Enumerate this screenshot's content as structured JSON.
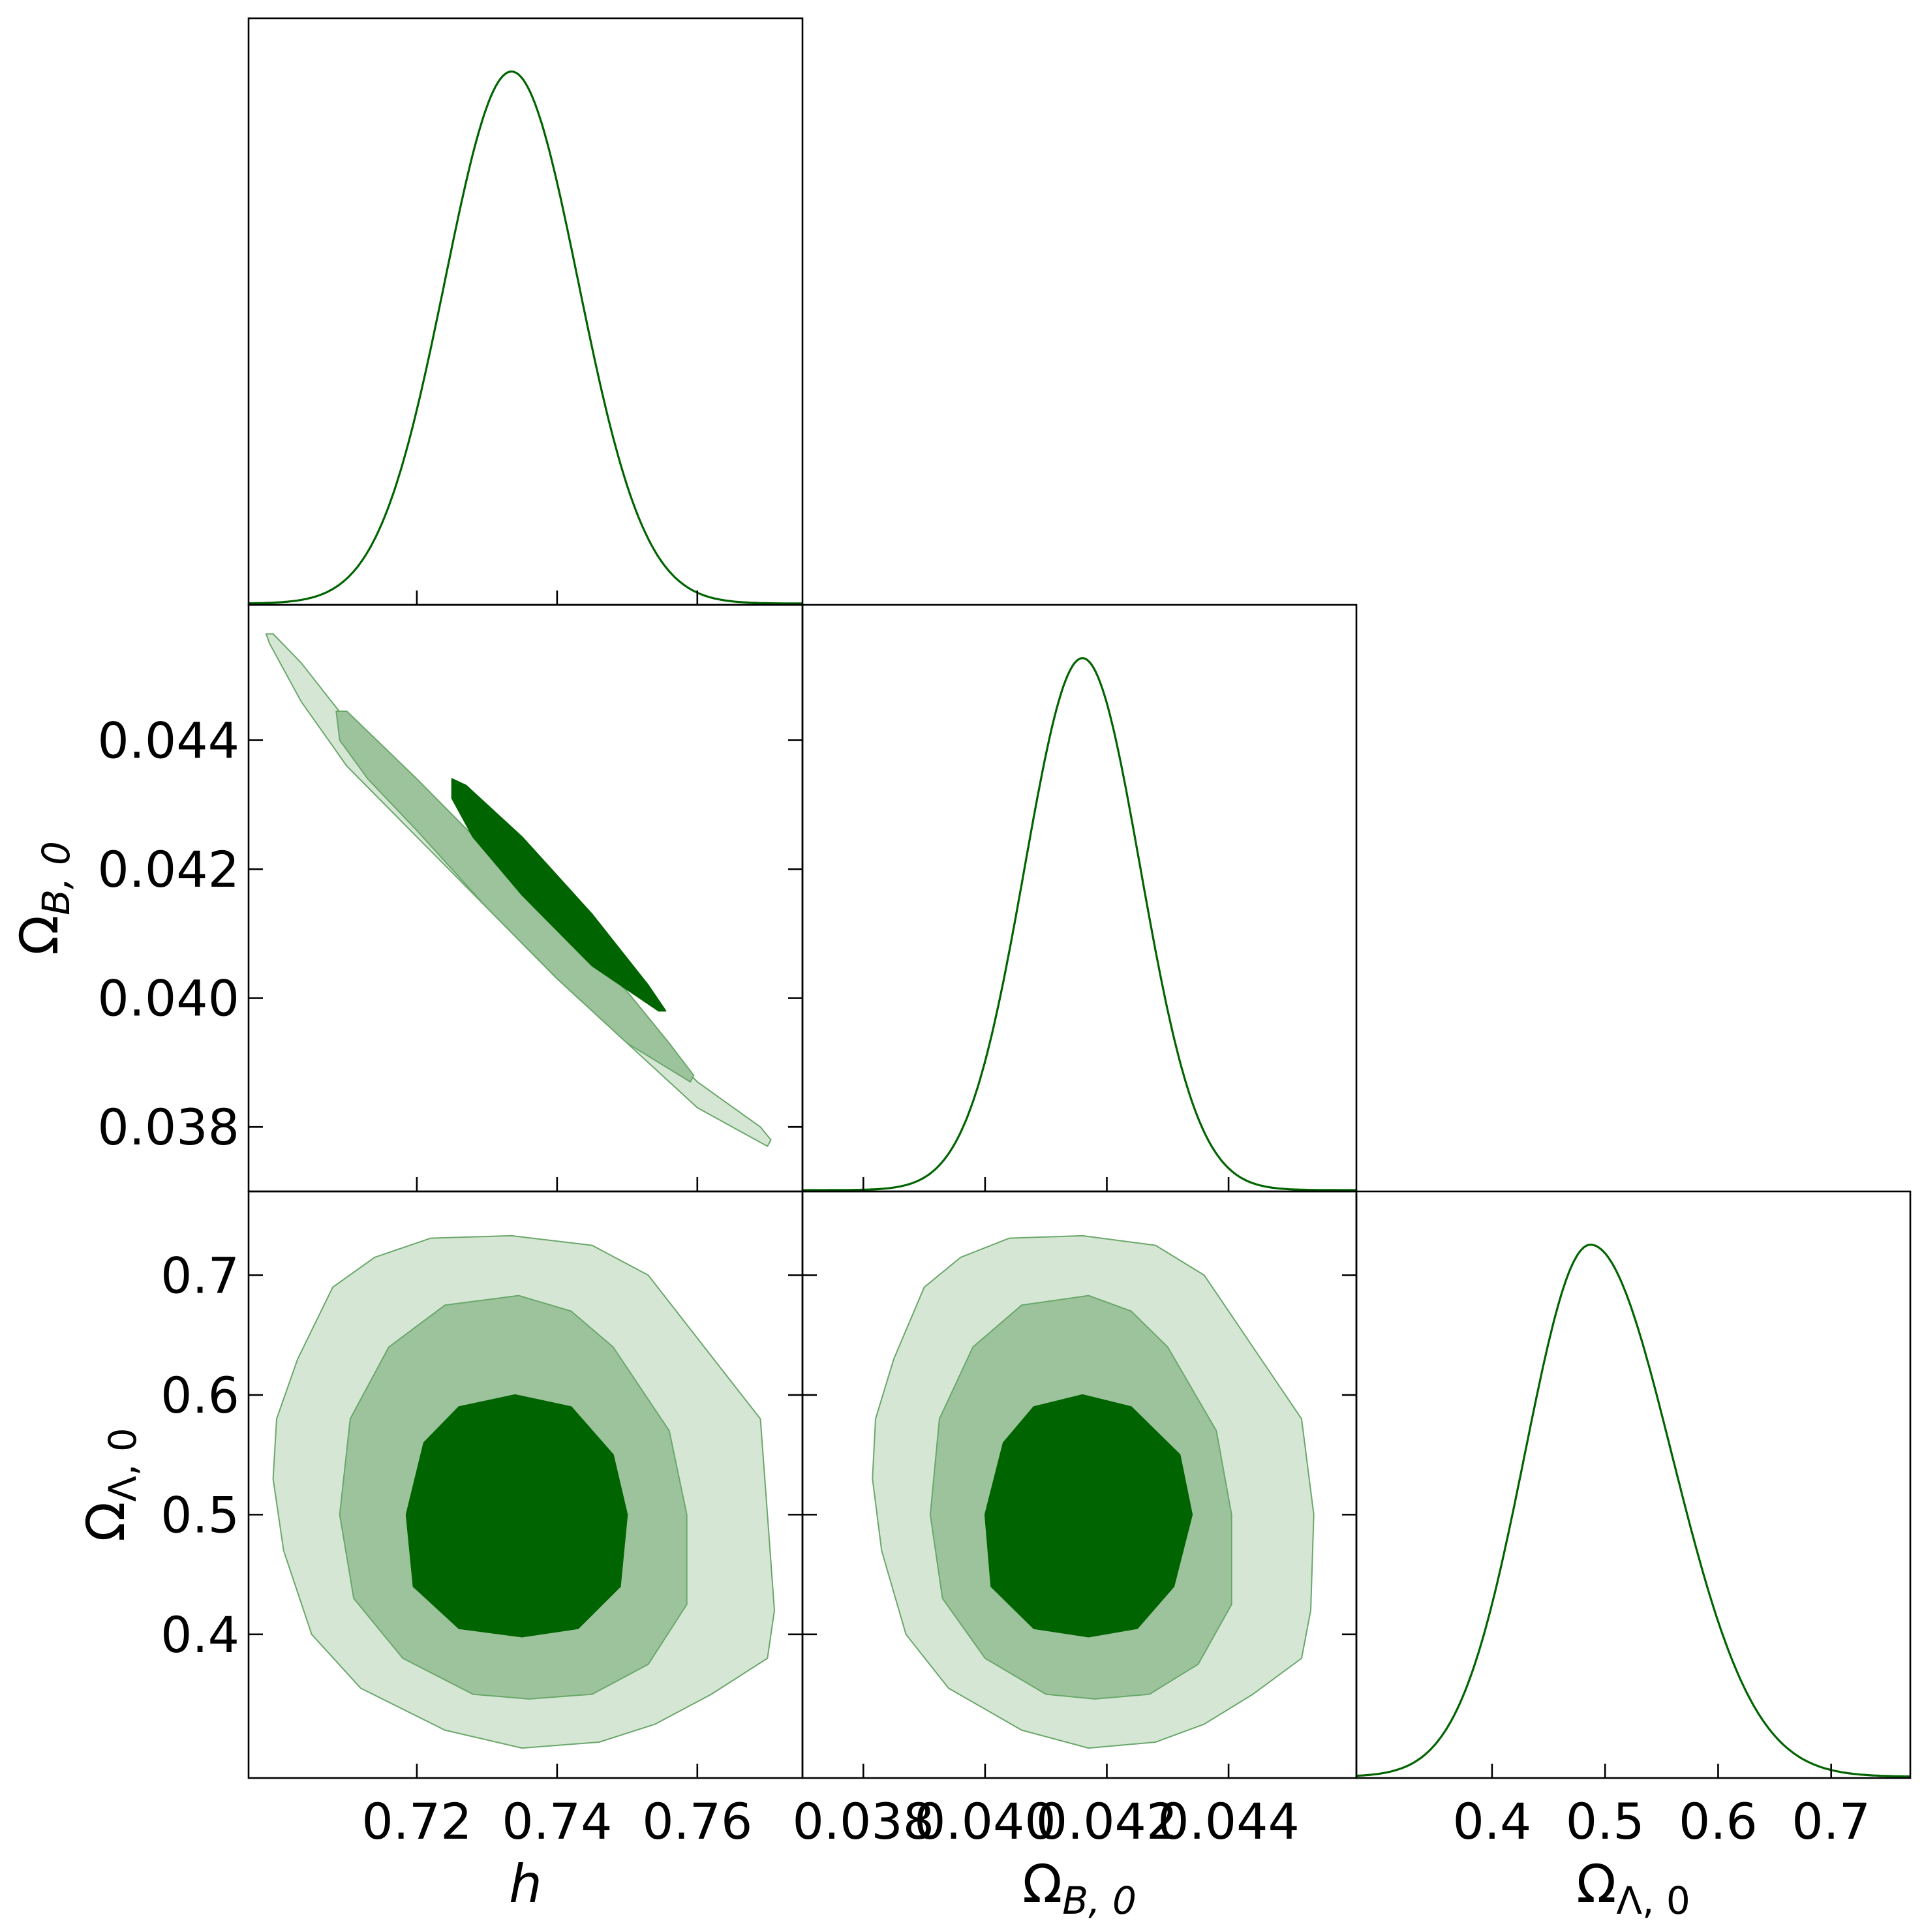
{
  "chart_data": {
    "type": "corner",
    "colors": {
      "line": "#006400",
      "contour_inner": "#006400",
      "contour_middle": "#9cc39c",
      "contour_outer": "#d5e6d5",
      "contour_edge": "#6aa76a"
    },
    "parameters": [
      {
        "key": "h",
        "label_symbol": "h",
        "label_sub": "",
        "range": [
          0.696,
          0.775
        ],
        "ticks": [
          0.72,
          0.74,
          0.76
        ],
        "tick_labels": [
          "0.72",
          "0.74",
          "0.76"
        ],
        "mean": 0.7335,
        "sigma": 0.0095
      },
      {
        "key": "omega_b",
        "label_symbol": "Ω",
        "label_sub": "B, 0",
        "range": [
          0.037,
          0.0461
        ],
        "ticks": [
          0.038,
          0.04,
          0.042,
          0.044
        ],
        "tick_labels": [
          "0.038",
          "0.040",
          "0.042",
          "0.044"
        ],
        "mean": 0.0416,
        "sigma": 0.00095
      },
      {
        "key": "omega_l",
        "label_symbol": "Ω",
        "label_sub": "Λ, 0",
        "range": [
          0.28,
          0.77
        ],
        "ticks": [
          0.4,
          0.5,
          0.6,
          0.7
        ],
        "tick_labels": [
          "0.4",
          "0.5",
          "0.6",
          "0.7"
        ],
        "mean": 0.487,
        "sigma_low": 0.058,
        "sigma_high": 0.072
      }
    ],
    "panels": [
      {
        "row": 0,
        "col": 0,
        "kind": "marginal",
        "param": "h"
      },
      {
        "row": 1,
        "col": 0,
        "kind": "joint",
        "x": "h",
        "y": "omega_b",
        "correlation": -0.99,
        "contours": [
          {
            "level": "outer",
            "polygon": [
              [
                0.6985,
                0.04565
              ],
              [
                0.6995,
                0.04565
              ],
              [
                0.7035,
                0.0452
              ],
              [
                0.71,
                0.0443
              ],
              [
                0.72,
                0.0431
              ],
              [
                0.73,
                0.042
              ],
              [
                0.74,
                0.0409
              ],
              [
                0.75,
                0.0398
              ],
              [
                0.76,
                0.0387
              ],
              [
                0.769,
                0.038
              ],
              [
                0.7705,
                0.0378
              ],
              [
                0.77,
                0.0377
              ],
              [
                0.765,
                0.038
              ],
              [
                0.76,
                0.0383
              ],
              [
                0.75,
                0.0393
              ],
              [
                0.74,
                0.0403
              ],
              [
                0.73,
                0.0414
              ],
              [
                0.72,
                0.0425
              ],
              [
                0.71,
                0.0436
              ],
              [
                0.7035,
                0.0446
              ],
              [
                0.699,
                0.0455
              ]
            ]
          },
          {
            "level": "middle",
            "polygon": [
              [
                0.7085,
                0.04445
              ],
              [
                0.71,
                0.04445
              ],
              [
                0.72,
                0.0434
              ],
              [
                0.73,
                0.0423
              ],
              [
                0.74,
                0.0412
              ],
              [
                0.75,
                0.0401
              ],
              [
                0.756,
                0.0393
              ],
              [
                0.7595,
                0.0388
              ],
              [
                0.759,
                0.0387
              ],
              [
                0.75,
                0.0393
              ],
              [
                0.74,
                0.0403
              ],
              [
                0.73,
                0.0414
              ],
              [
                0.72,
                0.0426
              ],
              [
                0.713,
                0.0434
              ],
              [
                0.709,
                0.044
              ]
            ]
          },
          {
            "level": "inner",
            "polygon": [
              [
                0.725,
                0.0434
              ],
              [
                0.727,
                0.0433
              ],
              [
                0.735,
                0.0425
              ],
              [
                0.745,
                0.0413
              ],
              [
                0.753,
                0.0402
              ],
              [
                0.7555,
                0.0398
              ],
              [
                0.7545,
                0.0398
              ],
              [
                0.745,
                0.0405
              ],
              [
                0.735,
                0.0416
              ],
              [
                0.728,
                0.0425
              ],
              [
                0.725,
                0.0431
              ]
            ]
          }
        ]
      },
      {
        "row": 1,
        "col": 1,
        "kind": "marginal",
        "param": "omega_b"
      },
      {
        "row": 2,
        "col": 0,
        "kind": "joint",
        "x": "h",
        "y": "omega_l",
        "contours": [
          {
            "level": "outer",
            "polygon": [
              [
                0.7335,
                0.733
              ],
              [
                0.722,
                0.731
              ],
              [
                0.714,
                0.715
              ],
              [
                0.708,
                0.69
              ],
              [
                0.703,
                0.63
              ],
              [
                0.7,
                0.58
              ],
              [
                0.6995,
                0.53
              ],
              [
                0.701,
                0.47
              ],
              [
                0.705,
                0.4
              ],
              [
                0.712,
                0.355
              ],
              [
                0.724,
                0.32
              ],
              [
                0.735,
                0.305
              ],
              [
                0.746,
                0.31
              ],
              [
                0.754,
                0.325
              ],
              [
                0.762,
                0.35
              ],
              [
                0.77,
                0.38
              ],
              [
                0.771,
                0.42
              ],
              [
                0.77,
                0.5
              ],
              [
                0.769,
                0.58
              ],
              [
                0.761,
                0.64
              ],
              [
                0.753,
                0.7
              ],
              [
                0.745,
                0.725
              ]
            ]
          },
          {
            "level": "middle",
            "polygon": [
              [
                0.7345,
                0.683
              ],
              [
                0.724,
                0.675
              ],
              [
                0.716,
                0.64
              ],
              [
                0.7105,
                0.58
              ],
              [
                0.709,
                0.5
              ],
              [
                0.711,
                0.43
              ],
              [
                0.718,
                0.38
              ],
              [
                0.728,
                0.35
              ],
              [
                0.736,
                0.346
              ],
              [
                0.745,
                0.35
              ],
              [
                0.753,
                0.375
              ],
              [
                0.7585,
                0.425
              ],
              [
                0.7585,
                0.5
              ],
              [
                0.756,
                0.57
              ],
              [
                0.748,
                0.64
              ],
              [
                0.742,
                0.67
              ]
            ]
          },
          {
            "level": "inner",
            "polygon": [
              [
                0.734,
                0.6
              ],
              [
                0.726,
                0.59
              ],
              [
                0.721,
                0.56
              ],
              [
                0.7185,
                0.5
              ],
              [
                0.7195,
                0.44
              ],
              [
                0.726,
                0.405
              ],
              [
                0.735,
                0.398
              ],
              [
                0.743,
                0.405
              ],
              [
                0.749,
                0.44
              ],
              [
                0.75,
                0.5
              ],
              [
                0.748,
                0.55
              ],
              [
                0.742,
                0.59
              ]
            ]
          }
        ]
      },
      {
        "row": 2,
        "col": 1,
        "kind": "joint",
        "x": "omega_b",
        "y": "omega_l",
        "contours": [
          {
            "level": "outer",
            "polygon": [
              [
                0.0416,
                0.733
              ],
              [
                0.0404,
                0.731
              ],
              [
                0.0396,
                0.715
              ],
              [
                0.039,
                0.69
              ],
              [
                0.0385,
                0.63
              ],
              [
                0.0382,
                0.58
              ],
              [
                0.03815,
                0.53
              ],
              [
                0.0383,
                0.47
              ],
              [
                0.0387,
                0.4
              ],
              [
                0.0394,
                0.355
              ],
              [
                0.0406,
                0.32
              ],
              [
                0.0417,
                0.305
              ],
              [
                0.0428,
                0.31
              ],
              [
                0.0436,
                0.325
              ],
              [
                0.0444,
                0.35
              ],
              [
                0.0452,
                0.38
              ],
              [
                0.04535,
                0.42
              ],
              [
                0.0454,
                0.5
              ],
              [
                0.0452,
                0.58
              ],
              [
                0.0444,
                0.64
              ],
              [
                0.0436,
                0.7
              ],
              [
                0.0428,
                0.725
              ]
            ]
          },
          {
            "level": "middle",
            "polygon": [
              [
                0.0417,
                0.683
              ],
              [
                0.0406,
                0.675
              ],
              [
                0.0398,
                0.64
              ],
              [
                0.03925,
                0.58
              ],
              [
                0.0391,
                0.5
              ],
              [
                0.0393,
                0.43
              ],
              [
                0.04,
                0.38
              ],
              [
                0.041,
                0.35
              ],
              [
                0.0418,
                0.346
              ],
              [
                0.0427,
                0.35
              ],
              [
                0.0435,
                0.375
              ],
              [
                0.04405,
                0.425
              ],
              [
                0.04405,
                0.5
              ],
              [
                0.0438,
                0.57
              ],
              [
                0.043,
                0.64
              ],
              [
                0.0424,
                0.67
              ]
            ]
          },
          {
            "level": "inner",
            "polygon": [
              [
                0.0416,
                0.6
              ],
              [
                0.0408,
                0.59
              ],
              [
                0.0403,
                0.56
              ],
              [
                0.04,
                0.5
              ],
              [
                0.0401,
                0.44
              ],
              [
                0.0408,
                0.405
              ],
              [
                0.0417,
                0.398
              ],
              [
                0.0425,
                0.405
              ],
              [
                0.0431,
                0.44
              ],
              [
                0.0434,
                0.5
              ],
              [
                0.0432,
                0.55
              ],
              [
                0.0424,
                0.59
              ]
            ]
          }
        ]
      },
      {
        "row": 2,
        "col": 2,
        "kind": "marginal",
        "param": "omega_l"
      }
    ]
  }
}
